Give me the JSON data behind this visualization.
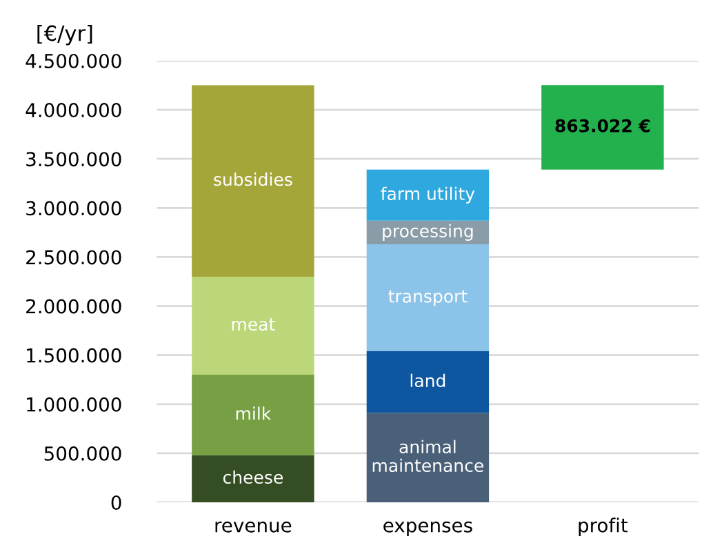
{
  "chart_data": {
    "type": "bar",
    "stacked": true,
    "ylabel": "[€/yr]",
    "categories": [
      "revenue",
      "expenses",
      "profit"
    ],
    "series": [
      {
        "name": "cheese",
        "color": "#344d22",
        "values": [
          480000,
          null,
          null
        ]
      },
      {
        "name": "milk",
        "color": "#76a043",
        "values": [
          820000,
          null,
          null
        ]
      },
      {
        "name": "meat",
        "color": "#bcd77a",
        "values": [
          1000000,
          null,
          null
        ]
      },
      {
        "name": "subsidies",
        "color": "#a5a63a",
        "values": [
          1950000,
          null,
          null
        ]
      },
      {
        "name": "animal\nmaintenance",
        "color": "#4a6078",
        "values": [
          null,
          910000,
          null
        ]
      },
      {
        "name": "land",
        "color": "#0e56a0",
        "values": [
          null,
          630000,
          null
        ]
      },
      {
        "name": "transport",
        "color": "#8cc3e8",
        "values": [
          null,
          1090000,
          null
        ]
      },
      {
        "name": "processing",
        "color": "#8a9ca8",
        "values": [
          null,
          240000,
          null
        ]
      },
      {
        "name": "farm utility",
        "color": "#2ea8df",
        "values": [
          null,
          520000,
          null
        ]
      },
      {
        "color": "#22b14c",
        "values": [
          null,
          null,
          863022
        ],
        "base": [
          null,
          null,
          3390000
        ],
        "value_labels": [
          null,
          null,
          "863.022 €"
        ]
      }
    ],
    "ylim": [
      0,
      4500000
    ],
    "yticks": [
      0,
      {
        "value": 500000,
        "label": "500.000"
      },
      {
        "value": 1000000,
        "label": "1.000.000"
      },
      {
        "value": 1500000,
        "label": "1.500.000"
      },
      {
        "value": 2000000,
        "label": "2.000.000"
      },
      {
        "value": 2500000,
        "label": "2.500.000"
      },
      {
        "value": 3000000,
        "label": "3.000.000"
      },
      {
        "value": 3500000,
        "label": "3.500.000"
      },
      {
        "value": 4000000,
        "label": "4.000.000"
      },
      {
        "value": 4500000,
        "label": "4.500.000"
      }
    ],
    "grid": "y",
    "legend": false
  }
}
